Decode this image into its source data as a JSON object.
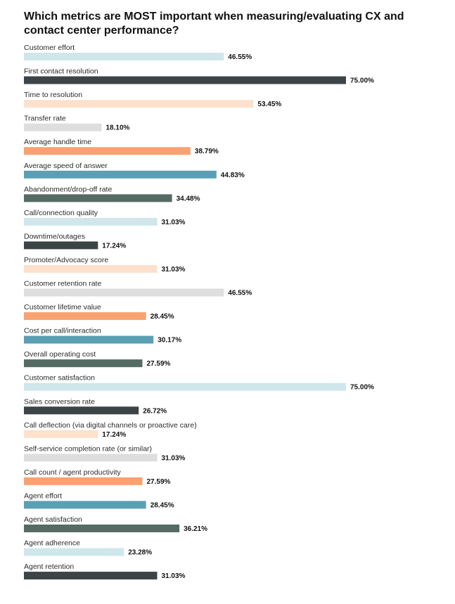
{
  "chart_data": {
    "type": "bar",
    "orientation": "horizontal",
    "title": "Which metrics are MOST important when measuring/evaluating CX and contact center performance?",
    "value_suffix": "%",
    "xlim": [
      0,
      75
    ],
    "grid": false,
    "legend": "none",
    "palette": [
      "#cfe6eb",
      "#3d4446",
      "#fde1cd",
      "#dedede",
      "#f9a271",
      "#5b9fb4",
      "#556b64"
    ],
    "categories": [
      "Customer effort",
      "First contact resolution",
      "Time to resolution",
      "Transfer rate",
      "Average handle time",
      "Average speed of answer",
      "Abandonment/drop-off rate",
      "Call/connection quality",
      "Downtime/outages",
      "Promoter/Advocacy score",
      "Customer retention rate",
      "Customer lifetime value",
      "Cost per call/interaction",
      "Overall operating cost",
      "Customer satisfaction",
      "Sales conversion rate",
      "Call deflection (via digital channels or proactive care)",
      "Self-service completion rate (or similar)",
      "Call count / agent productivity",
      "Agent effort",
      "Agent satisfaction",
      "Agent adherence",
      "Agent retention"
    ],
    "values": [
      46.55,
      75.0,
      53.45,
      18.1,
      38.79,
      44.83,
      34.48,
      31.03,
      17.24,
      31.03,
      46.55,
      28.45,
      30.17,
      27.59,
      75.0,
      26.72,
      17.24,
      31.03,
      27.59,
      28.45,
      36.21,
      23.28,
      31.03
    ],
    "value_labels": [
      "46.55%",
      "75.00%",
      "53.45%",
      "18.10%",
      "38.79%",
      "44.83%",
      "34.48%",
      "31.03%",
      "17.24%",
      "31.03%",
      "46.55%",
      "28.45%",
      "30.17%",
      "27.59%",
      "75.00%",
      "26.72%",
      "17.24%",
      "31.03%",
      "27.59%",
      "28.45%",
      "36.21%",
      "23.28%",
      "31.03%"
    ]
  }
}
